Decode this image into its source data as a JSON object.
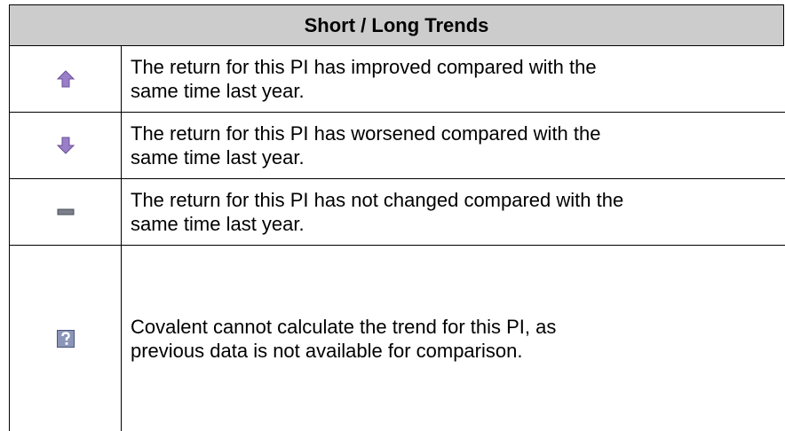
{
  "table": {
    "header": "Short / Long Trends",
    "rows": [
      {
        "lines": [
          "The return for this PI has improved compared with the",
          "same time last year."
        ]
      },
      {
        "lines": [
          "The return for this PI has worsened compared with the",
          "same time last year."
        ]
      },
      {
        "lines": [
          "The return for this PI has not changed compared with the",
          "same time last year."
        ]
      },
      {
        "lines": [
          "Covalent cannot calculate the trend for this PI, as",
          "previous data is not available for comparison."
        ]
      }
    ]
  }
}
